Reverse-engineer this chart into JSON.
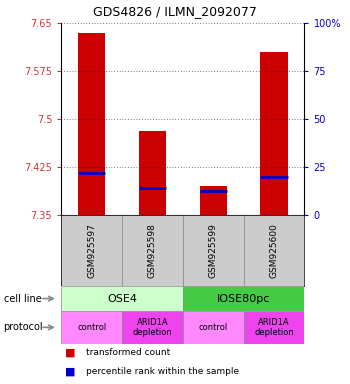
{
  "title": "GDS4826 / ILMN_2092077",
  "samples": [
    "GSM925597",
    "GSM925598",
    "GSM925599",
    "GSM925600"
  ],
  "bar_tops": [
    7.635,
    7.482,
    7.395,
    7.605
  ],
  "bar_bottom": 7.35,
  "blue_markers": [
    7.415,
    7.393,
    7.388,
    7.41
  ],
  "ylim": [
    7.35,
    7.65
  ],
  "yticks_left": [
    7.35,
    7.425,
    7.5,
    7.575,
    7.65
  ],
  "yticks_right": [
    0,
    25,
    50,
    75,
    100
  ],
  "bar_color": "#cc0000",
  "blue_color": "#0000cc",
  "cell_line_labels": [
    "OSE4",
    "IOSE80pc"
  ],
  "cell_line_spans": [
    [
      0,
      2
    ],
    [
      2,
      4
    ]
  ],
  "cell_line_color_osc4": "#ccffcc",
  "cell_line_color_iose": "#44cc44",
  "protocol_labels": [
    "control",
    "ARID1A\ndepletion",
    "control",
    "ARID1A\ndepletion"
  ],
  "protocol_color_light": "#ff88ff",
  "protocol_color_dark": "#ee44ee",
  "legend_red_label": "transformed count",
  "legend_blue_label": "percentile rank within the sample",
  "bar_width": 0.45,
  "sample_box_color": "#cccccc",
  "arrow_color": "#888888"
}
